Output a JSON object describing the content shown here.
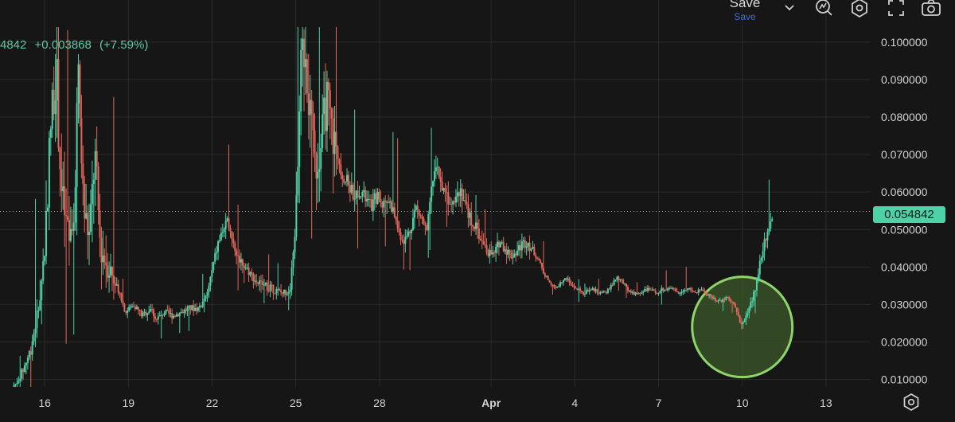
{
  "toolbar": {
    "save_label": "Save",
    "save_sublabel": "Save",
    "icons": [
      "chevron-down-icon",
      "indicator-icon",
      "settings-hexagon-icon",
      "fullscreen-icon",
      "camera-icon"
    ]
  },
  "header": {
    "price_partial": "4842",
    "change": "+0.003868",
    "change_pct": "(+7.59%)"
  },
  "price_label": "0.054842",
  "colors": {
    "background": "#161616",
    "up": "#4fd1a7",
    "down": "#e0675a",
    "grid": "#2a2a2a",
    "highlight_circle_fill": "#3c5a2a",
    "highlight_circle_stroke": "#8fd46a",
    "save_sub": "#3d6fd8"
  },
  "chart_data": {
    "type": "candlestick",
    "ylim": [
      0.008,
      0.104
    ],
    "y_ticks": [
      "0.100000",
      "0.090000",
      "0.080000",
      "0.070000",
      "0.060000",
      "0.050000",
      "0.040000",
      "0.030000",
      "0.020000",
      "0.010000"
    ],
    "y_tick_values": [
      0.1,
      0.09,
      0.08,
      0.07,
      0.06,
      0.05,
      0.04,
      0.03,
      0.02,
      0.01
    ],
    "x_ticks": [
      "16",
      "19",
      "22",
      "25",
      "28",
      "Apr",
      "4",
      "7",
      "10",
      "13"
    ],
    "x_tick_index": [
      14,
      17,
      20,
      23,
      26,
      30,
      33,
      36,
      39,
      42
    ],
    "x_range": [
      12.4,
      43.6
    ],
    "last_price": 0.054842,
    "highlight_region": {
      "x_center": 39.0,
      "y_center": 0.024,
      "label": ""
    },
    "close_series": [
      [
        12.9,
        0.008
      ],
      [
        13.2,
        0.012
      ],
      [
        13.5,
        0.018
      ],
      [
        13.8,
        0.03
      ],
      [
        14.0,
        0.045
      ],
      [
        14.2,
        0.075
      ],
      [
        14.4,
        0.095
      ],
      [
        14.6,
        0.06
      ],
      [
        14.8,
        0.05
      ],
      [
        15.0,
        0.045
      ],
      [
        15.2,
        0.09
      ],
      [
        15.4,
        0.055
      ],
      [
        15.6,
        0.048
      ],
      [
        15.8,
        0.07
      ],
      [
        16.0,
        0.045
      ],
      [
        16.3,
        0.04
      ],
      [
        16.6,
        0.035
      ],
      [
        16.9,
        0.028
      ],
      [
        17.2,
        0.03
      ],
      [
        17.5,
        0.027
      ],
      [
        17.8,
        0.029
      ],
      [
        18.0,
        0.026
      ],
      [
        18.3,
        0.028
      ],
      [
        18.6,
        0.027
      ],
      [
        18.9,
        0.028
      ],
      [
        19.2,
        0.029
      ],
      [
        19.5,
        0.029
      ],
      [
        19.8,
        0.032
      ],
      [
        20.0,
        0.039
      ],
      [
        20.2,
        0.046
      ],
      [
        20.4,
        0.05
      ],
      [
        20.6,
        0.052
      ],
      [
        20.8,
        0.045
      ],
      [
        21.0,
        0.042
      ],
      [
        21.3,
        0.039
      ],
      [
        21.6,
        0.036
      ],
      [
        21.9,
        0.035
      ],
      [
        22.2,
        0.034
      ],
      [
        22.5,
        0.033
      ],
      [
        22.8,
        0.034
      ],
      [
        23.0,
        0.052
      ],
      [
        23.1,
        0.075
      ],
      [
        23.2,
        0.095
      ],
      [
        23.35,
        0.098
      ],
      [
        23.5,
        0.08
      ],
      [
        23.7,
        0.066
      ],
      [
        23.9,
        0.072
      ],
      [
        24.1,
        0.085
      ],
      [
        24.3,
        0.076
      ],
      [
        24.5,
        0.07
      ],
      [
        24.7,
        0.064
      ],
      [
        24.9,
        0.062
      ],
      [
        25.1,
        0.059
      ],
      [
        25.3,
        0.061
      ],
      [
        25.5,
        0.058
      ],
      [
        25.7,
        0.056
      ],
      [
        25.9,
        0.059
      ],
      [
        26.1,
        0.057
      ],
      [
        26.3,
        0.058
      ],
      [
        26.5,
        0.055
      ],
      [
        26.7,
        0.049
      ],
      [
        26.9,
        0.047
      ],
      [
        27.1,
        0.05
      ],
      [
        27.3,
        0.056
      ],
      [
        27.5,
        0.053
      ],
      [
        27.7,
        0.049
      ],
      [
        27.9,
        0.063
      ],
      [
        28.1,
        0.066
      ],
      [
        28.3,
        0.06
      ],
      [
        28.5,
        0.058
      ],
      [
        28.7,
        0.059
      ],
      [
        28.9,
        0.061
      ],
      [
        29.1,
        0.056
      ],
      [
        29.3,
        0.052
      ],
      [
        29.5,
        0.05
      ],
      [
        29.7,
        0.046
      ],
      [
        29.9,
        0.044
      ],
      [
        30.1,
        0.043
      ],
      [
        30.3,
        0.047
      ],
      [
        30.5,
        0.045
      ],
      [
        30.7,
        0.043
      ],
      [
        30.9,
        0.044
      ],
      [
        31.1,
        0.046
      ],
      [
        31.3,
        0.047
      ],
      [
        31.5,
        0.044
      ],
      [
        31.7,
        0.042
      ],
      [
        31.9,
        0.038
      ],
      [
        32.1,
        0.036
      ],
      [
        32.3,
        0.034
      ],
      [
        32.5,
        0.036
      ],
      [
        32.7,
        0.037
      ],
      [
        32.9,
        0.035
      ],
      [
        33.1,
        0.034
      ],
      [
        33.3,
        0.033
      ],
      [
        33.5,
        0.034
      ],
      [
        33.7,
        0.034
      ],
      [
        33.9,
        0.033
      ],
      [
        34.1,
        0.033
      ],
      [
        34.3,
        0.035
      ],
      [
        34.5,
        0.037
      ],
      [
        34.7,
        0.036
      ],
      [
        34.9,
        0.034
      ],
      [
        35.1,
        0.033
      ],
      [
        35.3,
        0.033
      ],
      [
        35.5,
        0.034
      ],
      [
        35.7,
        0.034
      ],
      [
        35.9,
        0.033
      ],
      [
        36.1,
        0.034
      ],
      [
        36.3,
        0.034
      ],
      [
        36.5,
        0.034
      ],
      [
        36.7,
        0.033
      ],
      [
        36.9,
        0.034
      ],
      [
        37.1,
        0.034
      ],
      [
        37.3,
        0.033
      ],
      [
        37.5,
        0.034
      ],
      [
        37.7,
        0.033
      ],
      [
        37.9,
        0.032
      ],
      [
        38.1,
        0.031
      ],
      [
        38.3,
        0.031
      ],
      [
        38.5,
        0.032
      ],
      [
        38.7,
        0.03
      ],
      [
        38.9,
        0.026
      ],
      [
        39.05,
        0.025
      ],
      [
        39.2,
        0.028
      ],
      [
        39.35,
        0.031
      ],
      [
        39.5,
        0.035
      ],
      [
        39.6,
        0.04
      ],
      [
        39.7,
        0.044
      ],
      [
        39.8,
        0.047
      ],
      [
        39.9,
        0.05
      ],
      [
        40.0,
        0.052
      ],
      [
        40.1,
        0.054842
      ]
    ]
  }
}
